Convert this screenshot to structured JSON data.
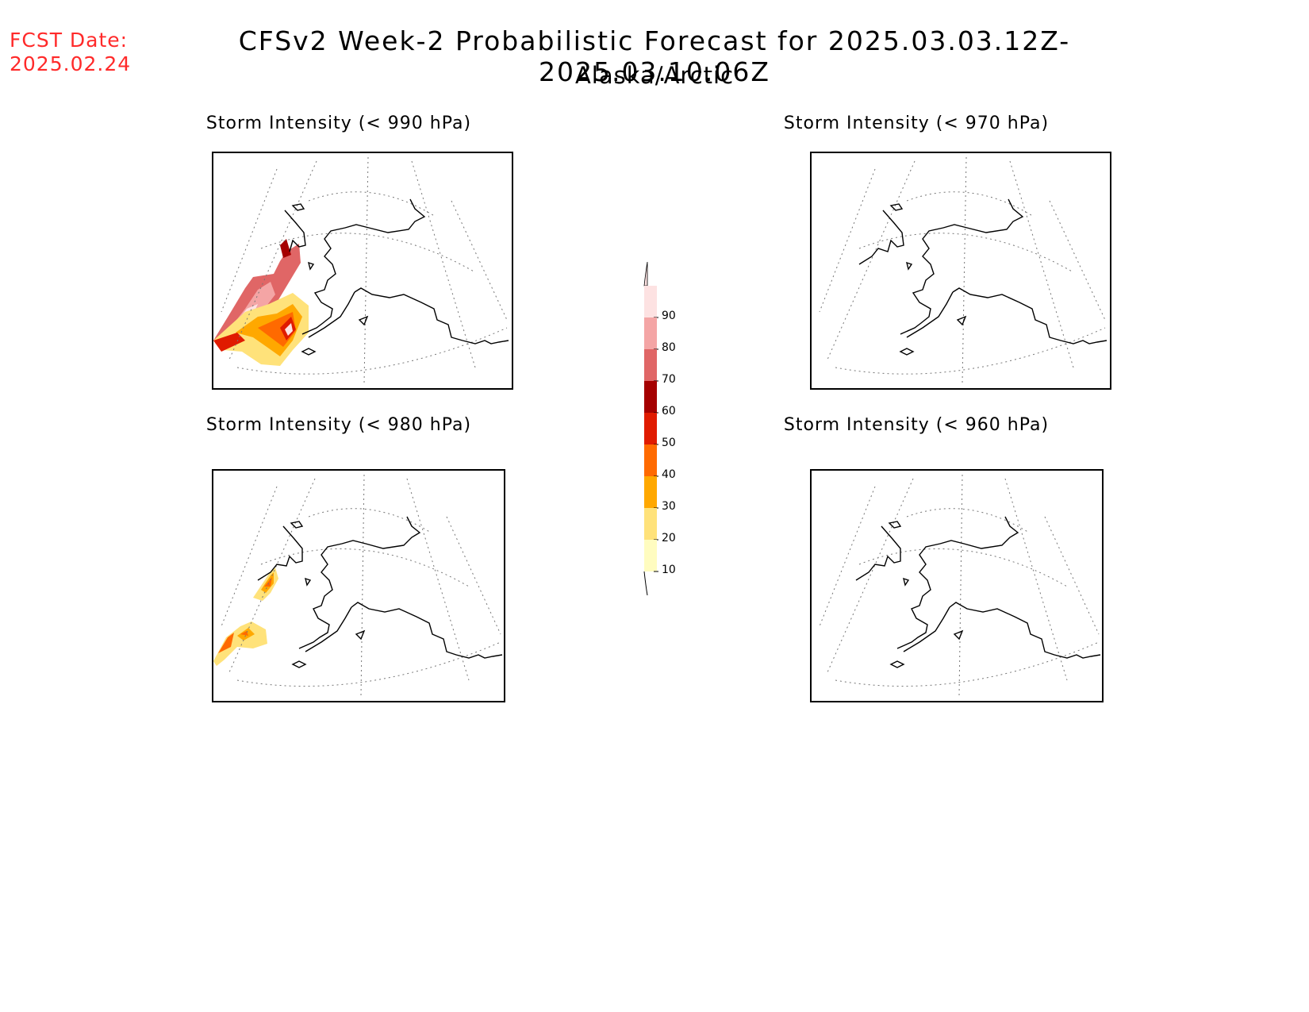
{
  "header": {
    "fcst_label": "FCST Date:",
    "fcst_date": "2025.02.24",
    "title": "CFSv2 Week-2 Probabilistic Forecast for 2025.03.03.12Z-2025.03.10.06Z",
    "subtitle": "Alaska/Arctic"
  },
  "panels": [
    {
      "title": "Storm Intensity (< 990 hPa)"
    },
    {
      "title": "Storm Intensity (< 970 hPa)"
    },
    {
      "title": "Storm Intensity (< 980 hPa)"
    },
    {
      "title": "Storm Intensity (< 960 hPa)"
    }
  ],
  "colorbar": {
    "labels": [
      "90",
      "80",
      "70",
      "60",
      "50",
      "40",
      "30",
      "20",
      "10"
    ],
    "colors": [
      "#fde2e2",
      "#f4a5a5",
      "#e06666",
      "#a50000",
      "#e01b00",
      "#ff6a00",
      "#ffa800",
      "#ffe27a",
      "#fffcc0"
    ]
  }
}
